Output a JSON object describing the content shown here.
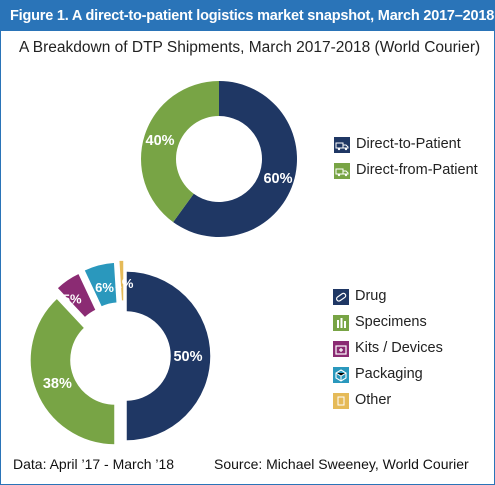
{
  "header": {
    "title": "Figure 1. A direct-to-patient logistics market snapshot, March 2017–2018.",
    "subtitle": "A Breakdown of DTP Shipments, March 2017-2018 (World Courier)"
  },
  "colors": {
    "banner": "#2a74b8",
    "navy": "#1f3764",
    "green": "#78a445",
    "purple": "#8b2b73",
    "teal": "#2a98bd",
    "gold": "#e5ba58"
  },
  "chart_data": [
    {
      "type": "pie",
      "title": "A Breakdown of DTP Shipments, March 2017-2018 (World Courier)",
      "categories": [
        "Direct-to-Patient",
        "Direct-from-Patient"
      ],
      "values": [
        60,
        40
      ],
      "labels": [
        "60%",
        "40%"
      ],
      "colors": [
        "#1f3764",
        "#78a445"
      ],
      "legend": "right",
      "icons": [
        "truck-icon",
        "truck-icon"
      ]
    },
    {
      "type": "pie",
      "categories": [
        "Drug",
        "Specimens",
        "Kits / Devices",
        "Packaging",
        "Other"
      ],
      "values": [
        50,
        38,
        5,
        6,
        1
      ],
      "labels": [
        "50%",
        "38%",
        "5%",
        "6%",
        "1%"
      ],
      "colors": [
        "#1f3764",
        "#78a445",
        "#8b2b73",
        "#2a98bd",
        "#e5ba58"
      ],
      "legend": "right",
      "exploded": true,
      "icons": [
        "pill-icon",
        "test-tube-icon",
        "kit-box-icon",
        "package-icon",
        "document-icon"
      ]
    }
  ],
  "footer": {
    "data_note": "Data: April ’17 - March ’18",
    "source": "Source:  Michael Sweeney, World Courier"
  }
}
